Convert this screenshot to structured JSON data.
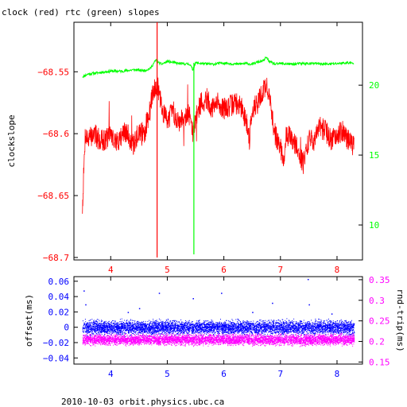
{
  "page": {
    "title": "clock (red) rtc (green) slopes",
    "footer": "2010-10-03 orbit.physics.ubc.ca"
  },
  "colors": {
    "clock": "#ff0000",
    "rtc": "#00ff00",
    "offset": "#0000ff",
    "roundtrip": "#ff00ff",
    "frame": "#000000"
  },
  "chart_data": [
    {
      "type": "line",
      "ylabel": "clockslope",
      "y2label": "",
      "xlim": [
        3.35,
        8.45
      ],
      "ylim": [
        -68.702,
        -68.51
      ],
      "y2lim": [
        7.5,
        24.5
      ],
      "x_ticks": [
        4,
        5,
        6,
        7,
        8
      ],
      "y_ticks": [
        -68.55,
        -68.6,
        -68.65,
        -68.7
      ],
      "y2_ticks": [
        10,
        15,
        20
      ],
      "grid": false,
      "series": [
        {
          "name": "clock",
          "axis": "left",
          "x": [
            3.5,
            3.55,
            3.6,
            3.7,
            3.8,
            3.9,
            4.0,
            4.1,
            4.2,
            4.3,
            4.4,
            4.5,
            4.6,
            4.7,
            4.75,
            4.8,
            4.85,
            4.9,
            4.95,
            5.0,
            5.1,
            5.2,
            5.3,
            5.4,
            5.45,
            5.5,
            5.55,
            5.6,
            5.7,
            5.8,
            5.9,
            6.0,
            6.1,
            6.2,
            6.3,
            6.4,
            6.45,
            6.5,
            6.6,
            6.7,
            6.75,
            6.8,
            6.9,
            7.0,
            7.05,
            7.1,
            7.2,
            7.3,
            7.4,
            7.5,
            7.6,
            7.7,
            7.8,
            7.9,
            8.0,
            8.1,
            8.2,
            8.3
          ],
          "y": [
            -68.66,
            -68.6,
            -68.605,
            -68.6,
            -68.605,
            -68.605,
            -68.6,
            -68.608,
            -68.6,
            -68.6,
            -68.61,
            -68.598,
            -68.6,
            -68.58,
            -68.565,
            -68.56,
            -68.565,
            -68.58,
            -68.585,
            -68.588,
            -68.582,
            -68.59,
            -68.585,
            -68.585,
            -68.6,
            -68.59,
            -68.58,
            -68.575,
            -68.572,
            -68.58,
            -68.575,
            -68.58,
            -68.578,
            -68.575,
            -68.578,
            -68.59,
            -68.605,
            -68.58,
            -68.575,
            -68.565,
            -68.56,
            -68.57,
            -68.6,
            -68.61,
            -68.625,
            -68.6,
            -68.605,
            -68.61,
            -68.625,
            -68.605,
            -68.605,
            -68.595,
            -68.598,
            -68.605,
            -68.6,
            -68.598,
            -68.605,
            -68.61
          ]
        },
        {
          "name": "rtc",
          "axis": "right",
          "x": [
            3.5,
            3.6,
            3.8,
            4.0,
            4.2,
            4.4,
            4.6,
            4.7,
            4.75,
            4.8,
            4.85,
            4.9,
            5.0,
            5.2,
            5.4,
            5.45,
            5.5,
            5.6,
            5.8,
            6.0,
            6.2,
            6.4,
            6.5,
            6.6,
            6.7,
            6.75,
            6.8,
            6.9,
            7.0,
            7.2,
            7.4,
            7.6,
            7.8,
            8.0,
            8.2,
            8.3
          ],
          "y": [
            20.6,
            20.8,
            20.9,
            21.0,
            21.0,
            21.1,
            21.05,
            21.2,
            21.5,
            21.8,
            21.6,
            21.5,
            21.7,
            21.55,
            21.5,
            21.1,
            21.6,
            21.55,
            21.5,
            21.6,
            21.5,
            21.55,
            21.5,
            21.65,
            21.75,
            22.0,
            21.7,
            21.5,
            21.55,
            21.5,
            21.55,
            21.55,
            21.5,
            21.55,
            21.6,
            21.55
          ]
        }
      ],
      "spikes": [
        {
          "series": "clock",
          "x": 4.82,
          "y_min": -68.7,
          "y_max": -68.51
        },
        {
          "series": "rtc",
          "x": 5.47,
          "y_min": 7.9,
          "y_max": 21.6
        }
      ]
    },
    {
      "type": "scatter",
      "ylabel": "offset(ms)",
      "y2label": "rnd-trip(ms)",
      "xlim": [
        3.35,
        8.45
      ],
      "ylim": [
        -0.048,
        0.066
      ],
      "y2lim": [
        0.145,
        0.3575
      ],
      "x_ticks": [
        4,
        5,
        6,
        7,
        8
      ],
      "y_ticks": [
        0.06,
        0.04,
        0.02,
        0,
        -0.02,
        -0.04
      ],
      "y_tick_labels": [
        "0.06",
        "0.04",
        "0.02",
        "0",
        "−0.02",
        "−0.04"
      ],
      "y2_ticks": [
        0.35,
        0.3,
        0.25,
        0.2,
        0.15
      ],
      "grid": false,
      "series": [
        {
          "name": "offset",
          "axis": "left",
          "x_range": [
            3.5,
            8.3
          ],
          "center": 0.0,
          "spread": 0.008,
          "outliers": [
            [
              3.52,
              0.048
            ],
            [
              3.55,
              0.03
            ],
            [
              4.3,
              0.02
            ],
            [
              4.5,
              0.025
            ],
            [
              4.85,
              0.045
            ],
            [
              5.45,
              0.038
            ],
            [
              5.95,
              0.045
            ],
            [
              6.5,
              0.02
            ],
            [
              6.85,
              0.032
            ],
            [
              7.48,
              0.063
            ],
            [
              7.5,
              0.03
            ],
            [
              7.9,
              0.018
            ]
          ]
        },
        {
          "name": "rnd-trip",
          "axis": "right",
          "x_range": [
            3.5,
            8.3
          ],
          "center": 0.205,
          "spread": 0.011
        }
      ]
    }
  ]
}
